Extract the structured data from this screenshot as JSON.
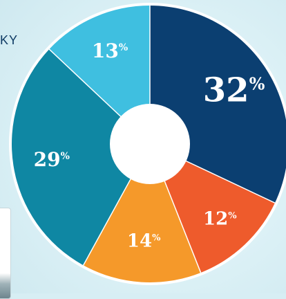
{
  "corner_text": "KY",
  "chart_data": {
    "type": "pie",
    "style": "donut",
    "slices": [
      {
        "label": "32",
        "value": 32,
        "color": "#0b3f71"
      },
      {
        "label": "12",
        "value": 12,
        "color": "#ee5b2c"
      },
      {
        "label": "14",
        "value": 14,
        "color": "#f5992a"
      },
      {
        "label": "29",
        "value": 29,
        "color": "#0f87a3"
      },
      {
        "label": "13",
        "value": 13,
        "color": "#3fbfe0"
      }
    ],
    "unit": "%",
    "legend": "none",
    "grid": false
  }
}
